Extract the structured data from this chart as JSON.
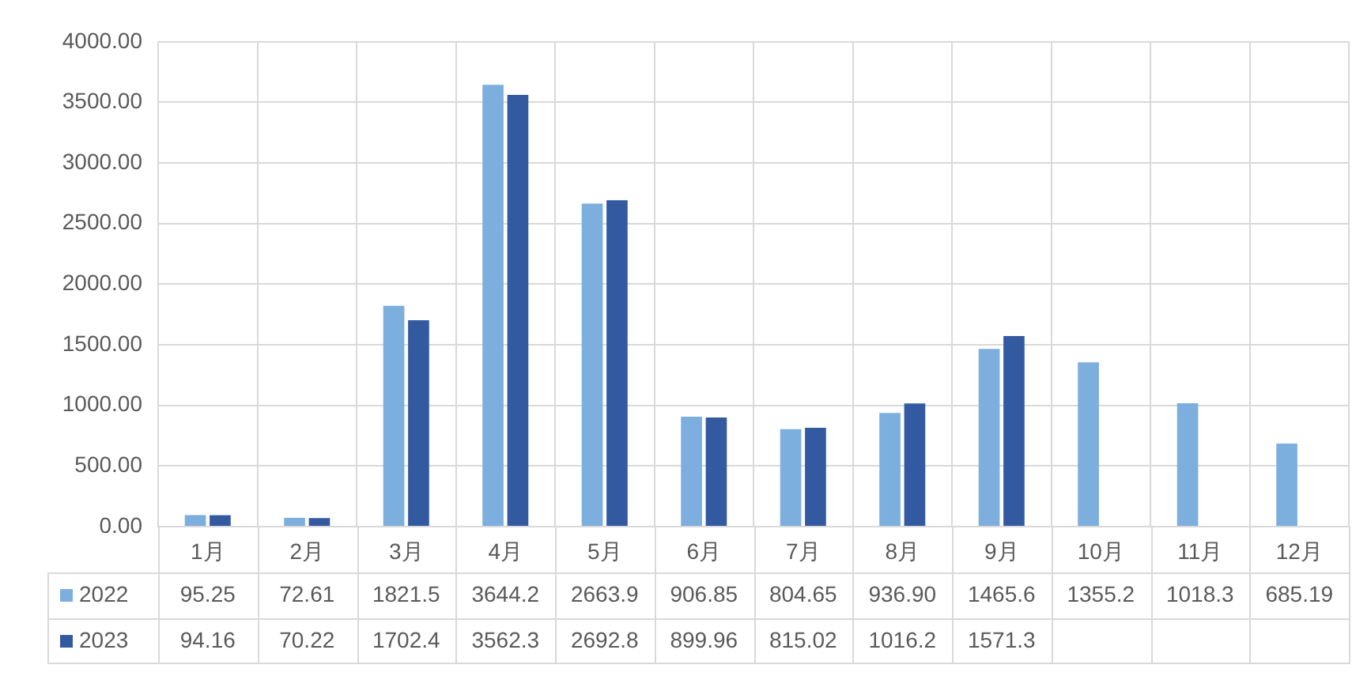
{
  "chart_data": {
    "type": "bar",
    "categories": [
      "1月",
      "2月",
      "3月",
      "4月",
      "5月",
      "6月",
      "7月",
      "8月",
      "9月",
      "10月",
      "11月",
      "12月"
    ],
    "series": [
      {
        "name": "2022",
        "color": "#7cafdd",
        "values": [
          95.25,
          72.61,
          1821.5,
          3644.2,
          2663.9,
          906.85,
          804.65,
          936.9,
          1465.6,
          1355.2,
          1018.3,
          685.19
        ],
        "value_labels": [
          "95.25",
          "72.61",
          "1821.5",
          "3644.2",
          "2663.9",
          "906.85",
          "804.65",
          "936.90",
          "1465.6",
          "1355.2",
          "1018.3",
          "685.19"
        ]
      },
      {
        "name": "2023",
        "color": "#335aa1",
        "values": [
          94.16,
          70.22,
          1702.4,
          3562.3,
          2692.8,
          899.96,
          815.02,
          1016.2,
          1571.3,
          null,
          null,
          null
        ],
        "value_labels": [
          "94.16",
          "70.22",
          "1702.4",
          "3562.3",
          "2692.8",
          "899.96",
          "815.02",
          "1016.2",
          "1571.3",
          null,
          null,
          null
        ]
      }
    ],
    "ylim": [
      0,
      4000
    ],
    "yticks": [
      {
        "value": 0,
        "label": "0.00"
      },
      {
        "value": 500,
        "label": "500.00"
      },
      {
        "value": 1000,
        "label": "1000.00"
      },
      {
        "value": 1500,
        "label": "1500.00"
      },
      {
        "value": 2000,
        "label": "2000.00"
      },
      {
        "value": 2500,
        "label": "2500.00"
      },
      {
        "value": 3000,
        "label": "3000.00"
      },
      {
        "value": 3500,
        "label": "3500.00"
      },
      {
        "value": 4000,
        "label": "4000.00"
      }
    ],
    "grid": true,
    "legend": "bottom"
  }
}
